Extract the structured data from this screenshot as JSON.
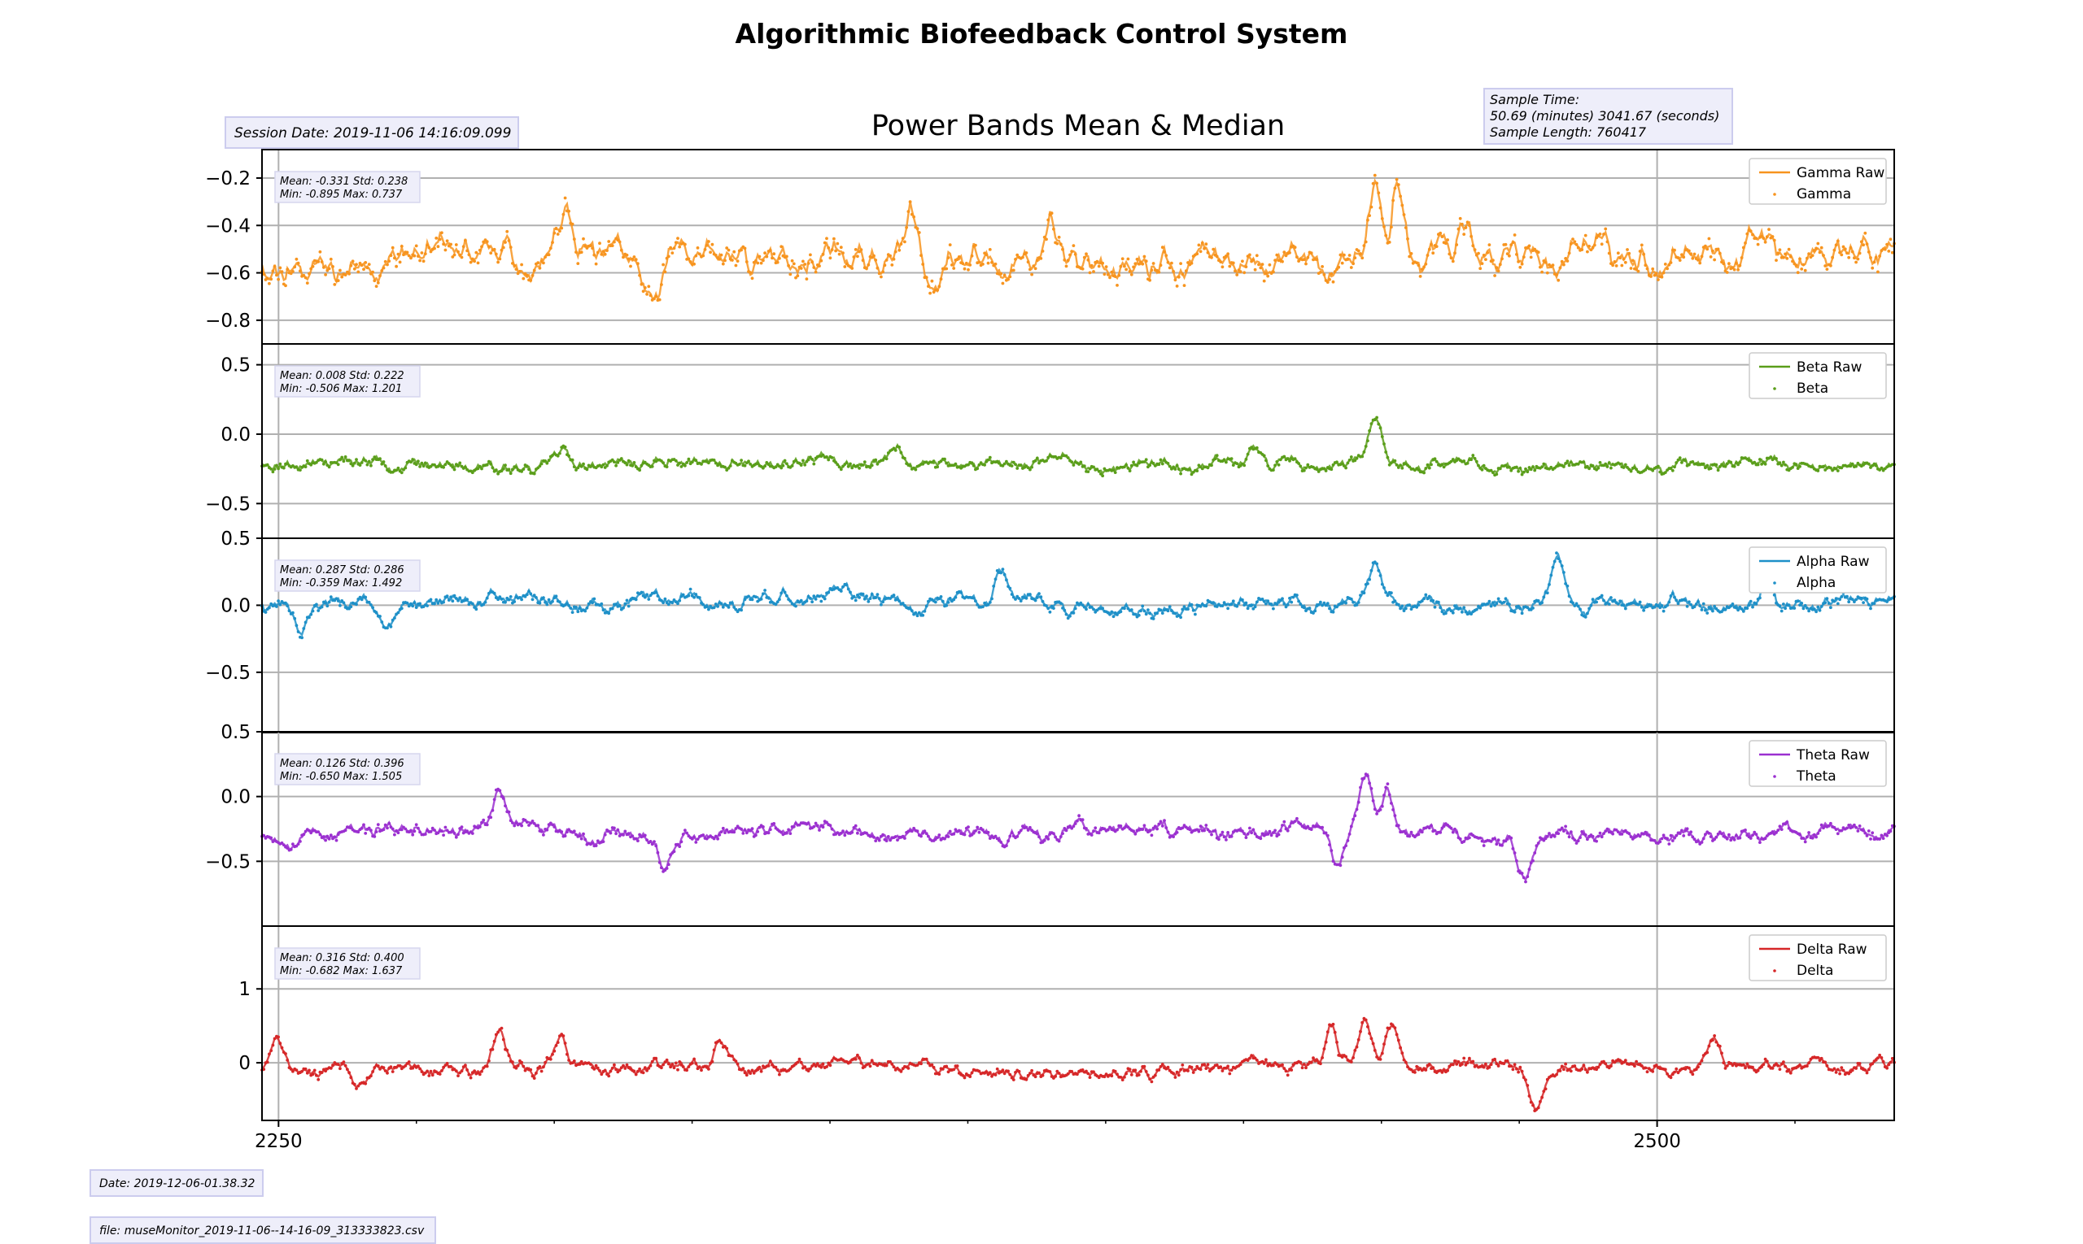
{
  "figure": {
    "title": "Algorithmic Biofeedback Control System",
    "subplot_title": "Power Bands Mean & Median",
    "session_date": "Session Date: 2019-11-06 14:16:09.099",
    "sample_time_label": "Sample Time:",
    "sample_time_value": "50.69 (minutes) 3041.67 (seconds)",
    "sample_length": "Sample Length: 760417",
    "footer_date": "Date: 2019-12-06-01.38.32",
    "footer_file": "file: museMonitor_2019-11-06--14-16-09_313333823.csv"
  },
  "chart_data": {
    "type": "line",
    "x_ticks": [
      2250,
      2500
    ],
    "x_tick_labels": [
      "2250",
      "2500"
    ],
    "xlim": [
      2247,
      2543
    ],
    "panels": [
      {
        "id": "gamma",
        "color": "#f7941e",
        "ylim": [
          -0.9,
          -0.08
        ],
        "y_ticks": [
          -0.2,
          -0.4,
          -0.6,
          -0.8
        ],
        "y_tick_labels": [
          "−0.2",
          "−0.4",
          "−0.6",
          "−0.8"
        ],
        "stats_line1": "Mean: -0.331 Std: 0.238",
        "stats_line2": "Min: -0.895 Max: 0.737",
        "legend": [
          "Gamma Raw",
          "Gamma"
        ],
        "base": -0.55,
        "amp": 0.1,
        "events": [
          [
            2302,
            0.18
          ],
          [
            2365,
            0.25
          ],
          [
            2449,
            0.3
          ],
          [
            2453,
            0.35
          ],
          [
            2318,
            -0.2
          ],
          [
            2390,
            0.15
          ],
          [
            2465,
            0.12
          ]
        ],
        "x_range": [
          2247,
          2543
        ],
        "seed": 11
      },
      {
        "id": "beta",
        "color": "#5a9e1a",
        "ylim": [
          -0.75,
          0.65
        ],
        "y_ticks": [
          0.5,
          0.0,
          -0.5
        ],
        "y_tick_labels": [
          "0.5",
          "0.0",
          "−0.5"
        ],
        "stats_line1": "Mean: 0.008 Std: 0.222",
        "stats_line2": "Min: -0.506 Max: 1.201",
        "legend": [
          "Beta Raw",
          "Beta"
        ],
        "base": -0.22,
        "amp": 0.06,
        "events": [
          [
            2449,
            0.35
          ],
          [
            2302,
            0.12
          ],
          [
            2362,
            0.1
          ],
          [
            2427,
            0.1
          ]
        ],
        "x_range": [
          2247,
          2543
        ],
        "seed": 23
      },
      {
        "id": "alpha",
        "color": "#1e90c8",
        "ylim": [
          -0.95,
          0.5
        ],
        "y_ticks": [
          0.5,
          0.0,
          -0.5
        ],
        "y_tick_labels": [
          "0.5",
          "0.0",
          "−0.5"
        ],
        "stats_line1": "Mean: 0.287 Std: 0.286",
        "stats_line2": "Min: -0.359 Max: 1.492",
        "legend": [
          "Alpha Raw",
          "Alpha"
        ],
        "base": 0.02,
        "amp": 0.08,
        "events": [
          [
            2449,
            0.3
          ],
          [
            2482,
            0.3
          ],
          [
            2381,
            0.25
          ],
          [
            2254,
            -0.18
          ],
          [
            2270,
            -0.2
          ],
          [
            2520,
            0.2
          ]
        ],
        "x_range": [
          2247,
          2543
        ],
        "seed": 37
      },
      {
        "id": "theta",
        "color": "#9b30d0",
        "ylim": [
          -1.0,
          0.5
        ],
        "y_ticks": [
          0.5,
          0.0,
          -0.5
        ],
        "y_tick_labels": [
          "0.5",
          "0.0",
          "−0.5"
        ],
        "stats_line1": "Mean: 0.126 Std: 0.396",
        "stats_line2": "Min: -0.650 Max: 1.505",
        "legend": [
          "Theta Raw",
          "Theta"
        ],
        "base": -0.28,
        "amp": 0.08,
        "events": [
          [
            2447,
            0.45
          ],
          [
            2451,
            0.35
          ],
          [
            2290,
            0.3
          ],
          [
            2320,
            -0.25
          ],
          [
            2442,
            -0.3
          ],
          [
            2476,
            -0.3
          ]
        ],
        "x_range": [
          2247,
          2543
        ],
        "seed": 53
      },
      {
        "id": "delta",
        "color": "#d62728",
        "ylim": [
          -0.78,
          1.85
        ],
        "y_ticks": [
          1,
          0
        ],
        "y_tick_labels": [
          "1",
          "0"
        ],
        "stats_line1": "Mean: 0.316 Std: 0.400",
        "stats_line2": "Min: -0.682 Max: 1.637",
        "legend": [
          "Delta Raw",
          "Delta"
        ],
        "base": -0.08,
        "amp": 0.13,
        "events": [
          [
            2447,
            0.65
          ],
          [
            2452,
            0.55
          ],
          [
            2250,
            0.4
          ],
          [
            2290,
            0.5
          ],
          [
            2301,
            0.4
          ],
          [
            2330,
            0.4
          ],
          [
            2441,
            0.5
          ],
          [
            2478,
            -0.5
          ],
          [
            2265,
            -0.25
          ],
          [
            2510,
            0.35
          ]
        ],
        "x_range": [
          2247,
          2543
        ],
        "seed": 71
      }
    ]
  }
}
